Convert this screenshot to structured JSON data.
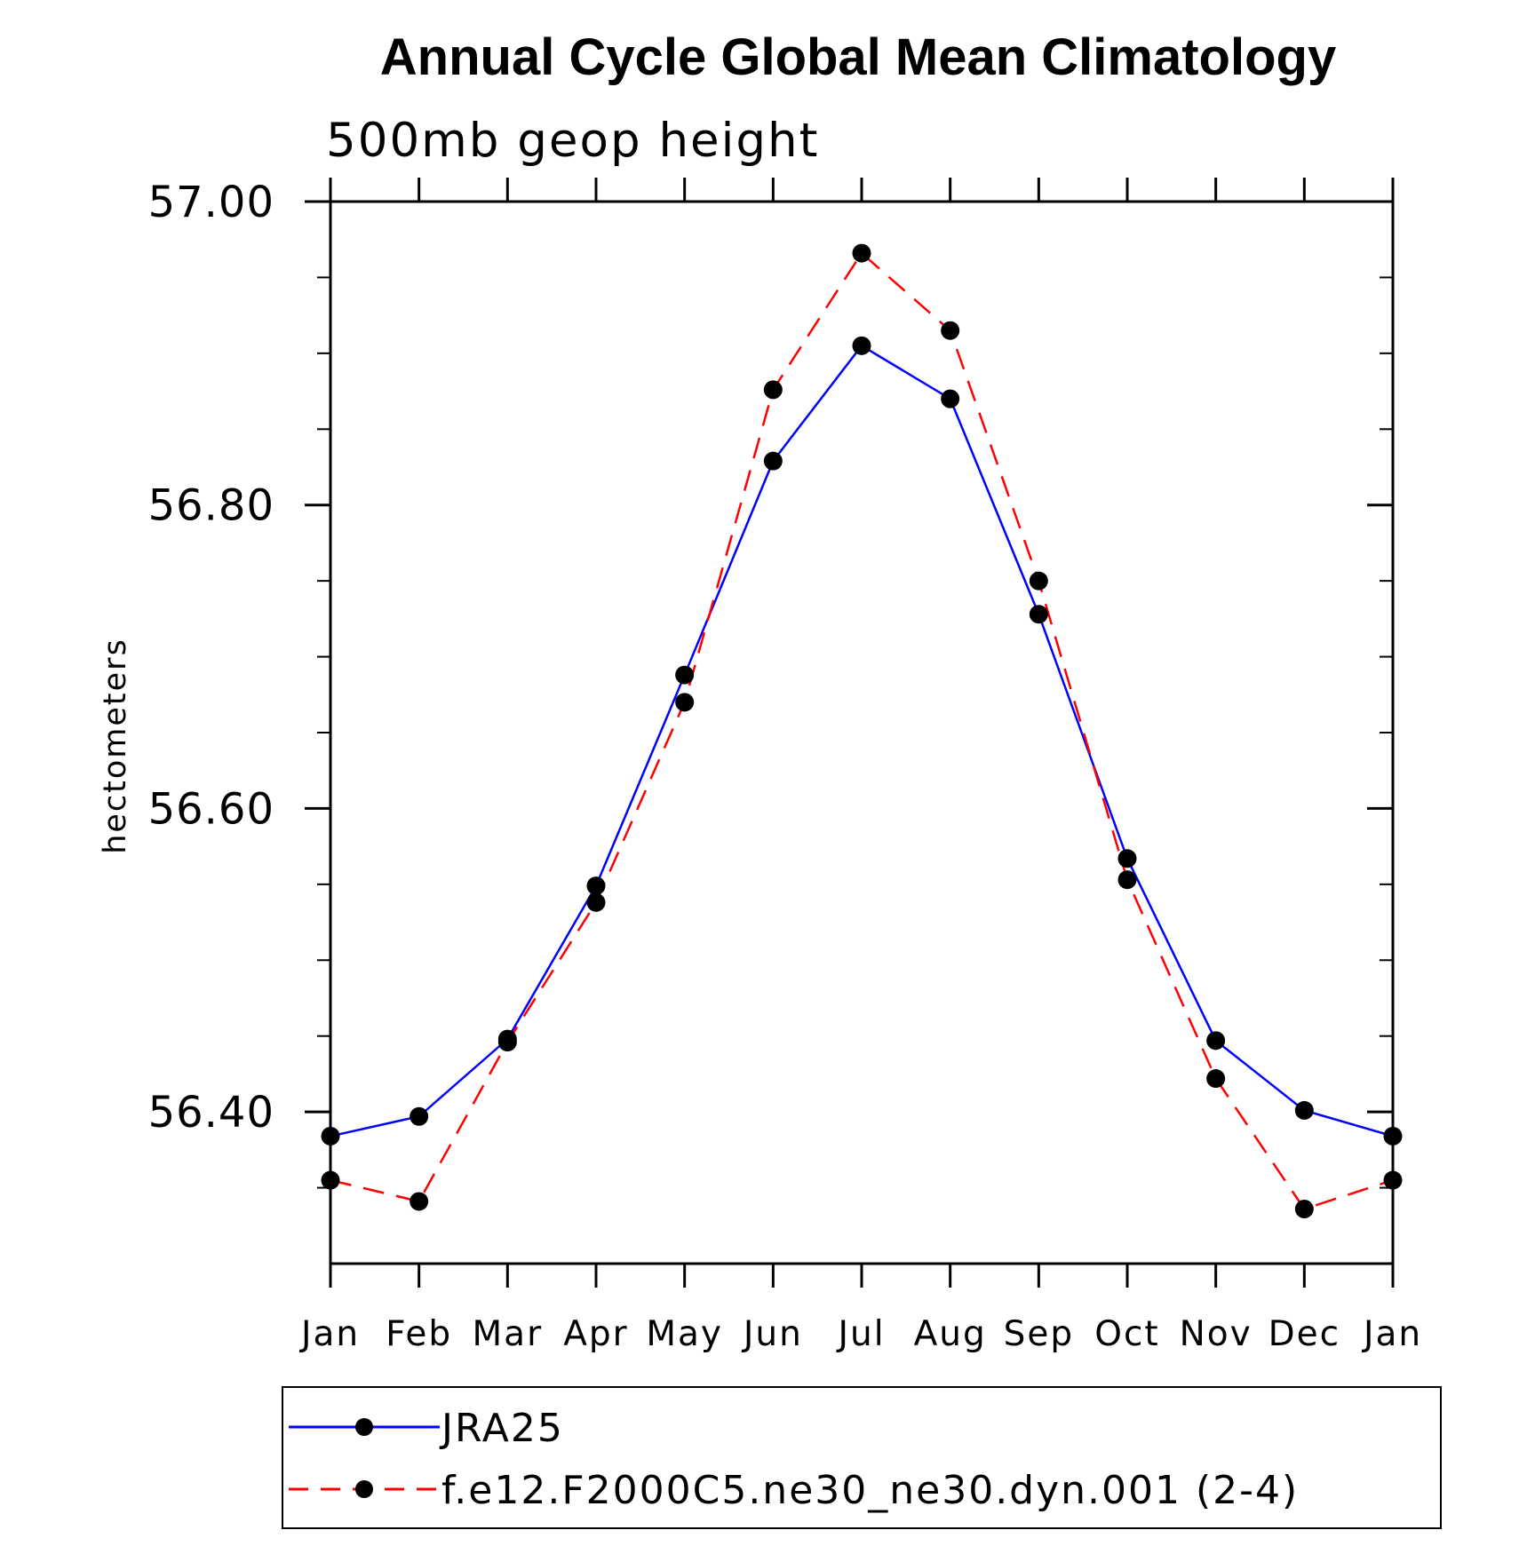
{
  "chart_data": {
    "type": "line",
    "title": "Annual Cycle Global Mean Climatology",
    "subtitle": "500mb geop height",
    "xlabel": "",
    "ylabel": "hectometers",
    "categories": [
      "Jan",
      "Feb",
      "Mar",
      "Apr",
      "May",
      "Jun",
      "Jul",
      "Aug",
      "Sep",
      "Oct",
      "Nov",
      "Dec",
      "Jan"
    ],
    "ylim": [
      56.3,
      57.0
    ],
    "yticks": [
      "56.40",
      "56.60",
      "56.80",
      "57.00"
    ],
    "ytick_values": [
      56.4,
      56.6,
      56.8,
      57.0
    ],
    "yminor_step": 0.05,
    "grid": false,
    "legend_position": "bottom",
    "series": [
      {
        "name": "JRA25",
        "color": "#0000ff",
        "line_style": "solid",
        "marker": "filled-circle",
        "values": [
          56.384,
          56.397,
          56.448,
          56.549,
          56.688,
          56.829,
          56.905,
          56.87,
          56.728,
          56.567,
          56.447,
          56.401,
          56.384
        ]
      },
      {
        "name": "f.e12.F2000C5.ne30_ne30.dyn.001 (2-4)",
        "color": "#ff0000",
        "line_style": "dashed",
        "marker": "filled-circle",
        "values": [
          56.355,
          56.341,
          56.446,
          56.538,
          56.67,
          56.876,
          56.966,
          56.915,
          56.75,
          56.553,
          56.422,
          56.336,
          56.355
        ]
      }
    ]
  }
}
